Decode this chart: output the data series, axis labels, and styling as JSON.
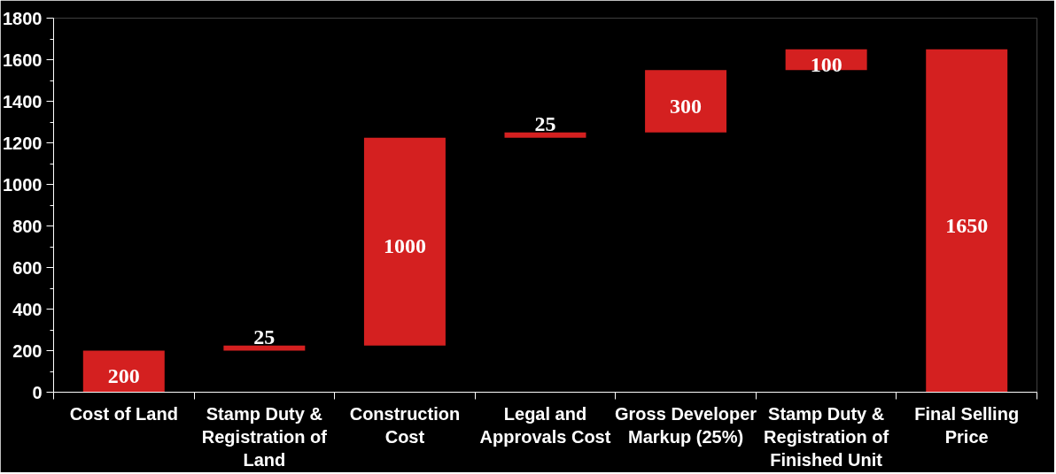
{
  "chart_data": {
    "type": "bar",
    "categories": [
      "Cost of Land",
      "Stamp Duty & Registration of Land",
      "Construction Cost",
      "Legal and Approvals Cost",
      "Gross Developer Markup (25%)",
      "Stamp Duty & Registration of Finished Unit",
      "Final Selling Price"
    ],
    "values": [
      200,
      25,
      1000,
      25,
      300,
      100,
      1650
    ],
    "base": [
      0,
      200,
      225,
      1225,
      1250,
      1550,
      0
    ],
    "color": "#d42020",
    "ylim": [
      0,
      1800
    ],
    "yticks": [
      0,
      {
        "value": 100,
        "label": null
      },
      200,
      {
        "value": 300,
        "label": null
      },
      400,
      {
        "value": 500,
        "label": null
      },
      600,
      {
        "value": 700,
        "label": null
      },
      800,
      {
        "value": 900,
        "label": null
      },
      1000,
      {
        "value": 1100,
        "label": null
      },
      1200,
      {
        "value": 1300,
        "label": null
      },
      1400,
      {
        "value": 1500,
        "label": null
      },
      1600,
      {
        "value": 1700,
        "label": null
      },
      1800
    ],
    "grid": false,
    "data_labels": true
  }
}
